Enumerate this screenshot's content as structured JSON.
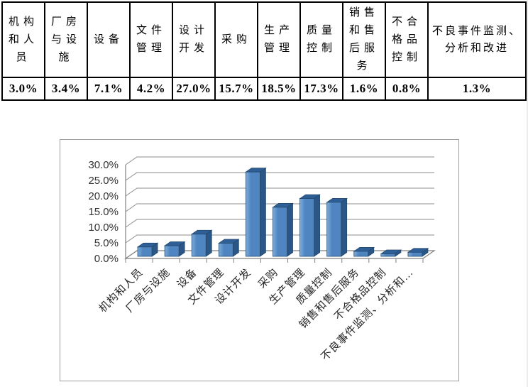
{
  "table": {
    "columns": [
      {
        "label": "机构\n和人\n员",
        "value": "3.0%"
      },
      {
        "label": "厂房\n与设\n施",
        "value": "3.4%"
      },
      {
        "label": "设备",
        "value": "7.1%"
      },
      {
        "label": "文件\n管理",
        "value": "4.2%"
      },
      {
        "label": "设计\n开发",
        "value": "27.0%"
      },
      {
        "label": "采购",
        "value": "15.7%"
      },
      {
        "label": "生产\n管理",
        "value": "18.5%"
      },
      {
        "label": "质量\n控制",
        "value": "17.3%"
      },
      {
        "label": "销售\n和售\n后服\n务",
        "value": "1.6%"
      },
      {
        "label": "不合\n格品\n控制",
        "value": "0.8%"
      },
      {
        "label": "不良事件监测、\n分析和改进",
        "value": "1.3%"
      }
    ]
  },
  "chart_data": {
    "type": "bar",
    "variant": "3d-column",
    "title": "",
    "xlabel": "",
    "ylabel": "",
    "categories": [
      "机构和人员",
      "厂房与设施",
      "设备",
      "文件管理",
      "设计开发",
      "采购",
      "生产管理",
      "质量控制",
      "销售和售后服务",
      "不合格品控制",
      "不良事件监测、分析和改进"
    ],
    "values": [
      3.0,
      3.4,
      7.1,
      4.2,
      27.0,
      15.7,
      18.5,
      17.3,
      1.6,
      0.8,
      1.3
    ],
    "x_tick_labels": [
      "机构和人员",
      "厂房与设施",
      "设备",
      "文件管理",
      "设计开发",
      "采购",
      "生产管理",
      "质量控制",
      "销售和售后服务",
      "不合格品控制",
      "不良事件监测、分析和…"
    ],
    "y_ticks": [
      "0.0%",
      "5.0%",
      "10.0%",
      "15.0%",
      "20.0%",
      "25.0%",
      "30.0%"
    ],
    "ylim": [
      0,
      30
    ],
    "y_step": 5,
    "grid": true,
    "legend_position": "none",
    "colors": {
      "bar_front": "#4f86c2",
      "bar_front_light": "#7fadd9",
      "bar_side": "#2b5788",
      "bar_top": "#2f5f97",
      "bar_outline": "#24496e",
      "gridline": "#8c8c8c",
      "axis": "#808080",
      "chart_border": "#9e9e9e",
      "label_text": "#262626"
    }
  }
}
